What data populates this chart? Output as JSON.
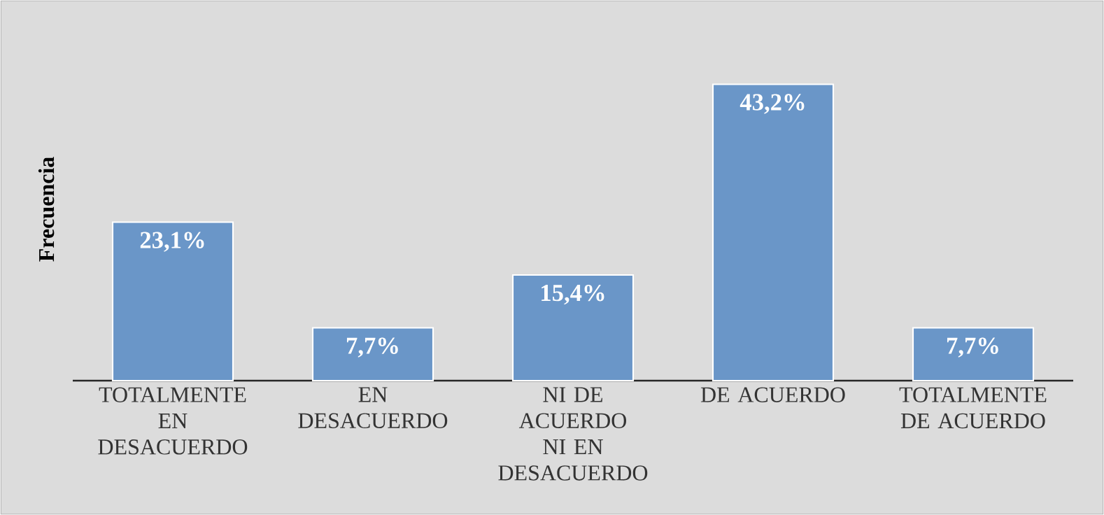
{
  "chart_data": {
    "type": "bar",
    "ylabel": "Frecuencia",
    "categories": [
      "TOTALMENTE EN DESACUERDO",
      "EN DESACUERDO",
      "NI DE ACUERDO NI EN DESACUERDO",
      "DE ACUERDO",
      "TOTALMENTE DE ACUERDO"
    ],
    "values": [
      23.1,
      7.7,
      15.4,
      43.2,
      7.7
    ],
    "value_labels": [
      "23,1%",
      "7,7%",
      "15,4%",
      "43,2%",
      "7,7%"
    ],
    "color": "#6a96c8",
    "tick_labels": "x"
  }
}
